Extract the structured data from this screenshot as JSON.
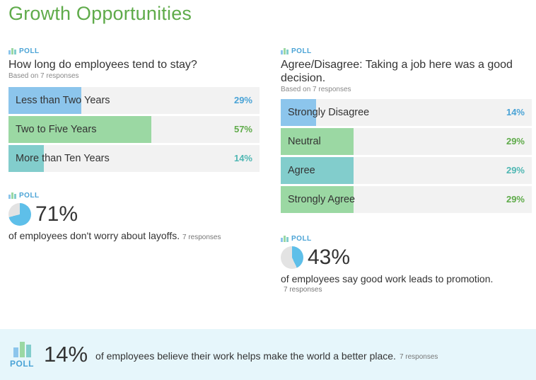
{
  "page_title": "Growth Opportunities",
  "colors": {
    "title_green": "#5fab4a",
    "poll_blue": "#4aa3d6",
    "bar_blue": "#8cc5ec",
    "bar_green": "#9bd8a3",
    "bar_teal": "#82cdcc",
    "pct_blue": "#4aa3d6",
    "pct_green": "#5fab4a",
    "pct_teal": "#4fb7b3"
  },
  "poll_label": "POLL",
  "poll1": {
    "question": "How long do employees tend to stay?",
    "based_on": "Based on 7 responses",
    "options": [
      {
        "label": "Less than Two Years",
        "pct_text": "29%",
        "value": 0.29,
        "color": "bar_blue"
      },
      {
        "label": "Two to Five Years",
        "pct_text": "57%",
        "value": 0.57,
        "color": "bar_green"
      },
      {
        "label": "More than Ten Years",
        "pct_text": "14%",
        "value": 0.14,
        "color": "bar_teal"
      }
    ]
  },
  "poll2": {
    "question": "Agree/Disagree: Taking a job here was a good decision.",
    "based_on": "Based on 7 responses",
    "options": [
      {
        "label": "Strongly Disagree",
        "pct_text": "14%",
        "value": 0.14,
        "color": "bar_blue"
      },
      {
        "label": "Neutral",
        "pct_text": "29%",
        "value": 0.29,
        "color": "bar_green"
      },
      {
        "label": "Agree",
        "pct_text": "29%",
        "value": 0.29,
        "color": "bar_teal"
      },
      {
        "label": "Strongly Agree",
        "pct_text": "29%",
        "value": 0.29,
        "color": "bar_green"
      }
    ]
  },
  "stat1": {
    "percent": "71%",
    "value": 0.71,
    "text": "of employees don't worry about layoffs.",
    "responses": "7 responses"
  },
  "stat2": {
    "percent": "43%",
    "value": 0.43,
    "text": "of employees say good work leads to promotion.",
    "responses": "7 responses"
  },
  "footer": {
    "percent": "14%",
    "text": "of employees believe their work helps make the world a better place.",
    "responses": "7 responses"
  }
}
